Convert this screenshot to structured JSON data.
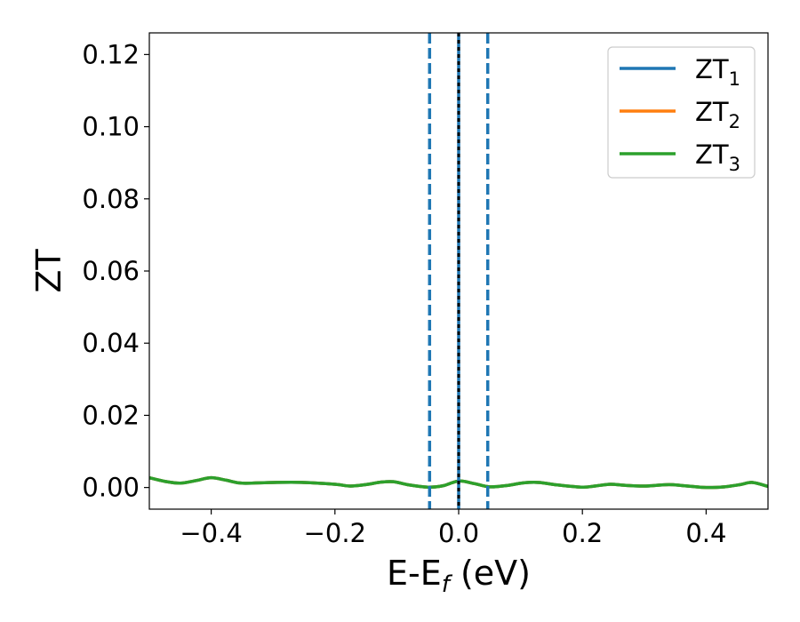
{
  "chart_data": {
    "type": "line",
    "xlabel": "E-E",
    "xlabel_sub": "f",
    "xlabel_unit": " (eV)",
    "ylabel": "ZT",
    "xlim": [
      -0.5,
      0.5
    ],
    "ylim": [
      -0.006,
      0.126
    ],
    "x_ticks": [
      -0.4,
      -0.2,
      0.0,
      0.2,
      0.4
    ],
    "x_tick_labels": [
      "−0.4",
      "−0.2",
      "0.0",
      "0.2",
      "0.4"
    ],
    "y_ticks": [
      0.0,
      0.02,
      0.04,
      0.06,
      0.08,
      0.1,
      0.12
    ],
    "y_tick_labels": [
      "0.00",
      "0.02",
      "0.04",
      "0.06",
      "0.08",
      "0.10",
      "0.12"
    ],
    "grid": false,
    "legend_position": "top-right",
    "x": [
      -0.5,
      -0.475,
      -0.45,
      -0.425,
      -0.4,
      -0.375,
      -0.35,
      -0.3,
      -0.25,
      -0.2,
      -0.175,
      -0.15,
      -0.125,
      -0.105,
      -0.08,
      -0.05,
      -0.025,
      0.0,
      0.025,
      0.05,
      0.08,
      0.105,
      0.13,
      0.16,
      0.2,
      0.22,
      0.245,
      0.27,
      0.3,
      0.34,
      0.37,
      0.4,
      0.43,
      0.455,
      0.475,
      0.5
    ],
    "series": [
      {
        "name": "ZT",
        "name_sub": "1",
        "color": "#1f77b4",
        "values": [
          0.0027,
          0.0017,
          0.0012,
          0.0019,
          0.0027,
          0.002,
          0.0012,
          0.0014,
          0.0014,
          0.0009,
          0.0004,
          0.0008,
          0.0015,
          0.0016,
          0.0007,
          0.0001,
          0.0005,
          0.0018,
          0.0011,
          0.0002,
          0.0006,
          0.0013,
          0.0014,
          0.0007,
          0.0001,
          0.0004,
          0.0009,
          0.0006,
          0.0004,
          0.0008,
          0.0004,
          0.0,
          0.0002,
          0.0008,
          0.0014,
          0.0003
        ]
      },
      {
        "name": "ZT",
        "name_sub": "2",
        "color": "#ff7f0e",
        "values": [
          0.0027,
          0.0017,
          0.0012,
          0.0019,
          0.0027,
          0.002,
          0.0012,
          0.0014,
          0.0014,
          0.0009,
          0.0004,
          0.0008,
          0.0015,
          0.0016,
          0.0007,
          0.0001,
          0.0005,
          0.0018,
          0.0011,
          0.0002,
          0.0006,
          0.0013,
          0.0014,
          0.0007,
          0.0001,
          0.0004,
          0.0009,
          0.0006,
          0.0004,
          0.0008,
          0.0004,
          0.0,
          0.0002,
          0.0008,
          0.0014,
          0.0003
        ]
      },
      {
        "name": "ZT",
        "name_sub": "3",
        "color": "#2ca02c",
        "values": [
          0.0027,
          0.0017,
          0.0012,
          0.0019,
          0.0027,
          0.002,
          0.0012,
          0.0014,
          0.0014,
          0.0009,
          0.0004,
          0.0008,
          0.0015,
          0.0016,
          0.0007,
          0.0001,
          0.0005,
          0.0018,
          0.0011,
          0.0002,
          0.0006,
          0.0013,
          0.0014,
          0.0007,
          0.0001,
          0.0004,
          0.0009,
          0.0006,
          0.0004,
          0.0008,
          0.0004,
          0.0,
          0.0002,
          0.0008,
          0.0014,
          0.0003
        ]
      }
    ],
    "vlines": [
      {
        "x": -0.047,
        "style": "dashed",
        "color": "#1f77b4"
      },
      {
        "x": 0.0,
        "style": "solid",
        "color": "#1f77b4"
      },
      {
        "x": 0.0,
        "style": "dotted",
        "color": "#000000"
      },
      {
        "x": 0.047,
        "style": "dashed",
        "color": "#1f77b4"
      }
    ]
  }
}
